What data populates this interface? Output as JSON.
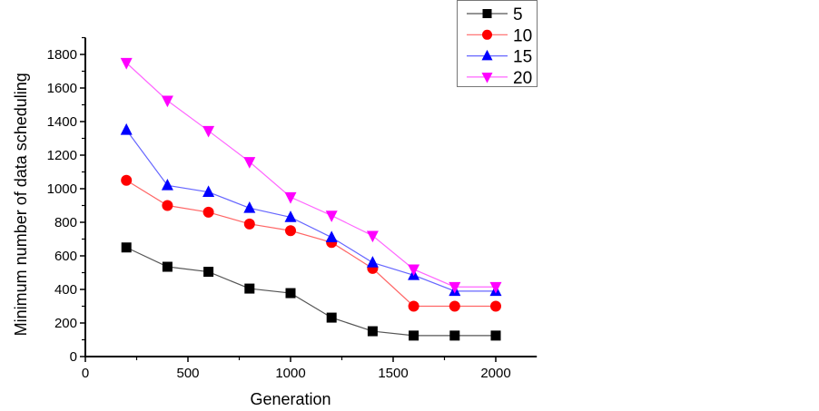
{
  "chart_data": {
    "type": "line",
    "title": "",
    "xlabel": "Generation",
    "ylabel": "Minimum number of data scheduling",
    "xlim": [
      0,
      2200
    ],
    "ylim": [
      0,
      1900
    ],
    "x_ticks": [
      0,
      500,
      1000,
      1500,
      2000
    ],
    "x_tick_labels": [
      "0",
      "500",
      "1000",
      "1500",
      "2000"
    ],
    "y_ticks": [
      0,
      200,
      400,
      600,
      800,
      1000,
      1200,
      1400,
      1600,
      1800
    ],
    "y_tick_labels": [
      "0",
      "200",
      "400",
      "600",
      "800",
      "1000",
      "1200",
      "1400",
      "1600",
      "1800"
    ],
    "grid": false,
    "legend_position": "top-right",
    "x": [
      200,
      400,
      600,
      800,
      1000,
      1200,
      1400,
      1600,
      1800,
      2000
    ],
    "series": [
      {
        "name": "5",
        "color": "#000000",
        "line_color": "#555555",
        "marker": "square",
        "values": [
          650,
          535,
          505,
          405,
          378,
          232,
          151,
          125,
          125,
          125
        ]
      },
      {
        "name": "10",
        "color": "#ff0000",
        "line_color": "#ff6666",
        "marker": "circle",
        "values": [
          1050,
          900,
          860,
          790,
          750,
          680,
          525,
          300,
          300,
          300
        ]
      },
      {
        "name": "15",
        "color": "#0000ff",
        "line_color": "#6666ff",
        "marker": "triangle-up",
        "values": [
          1350,
          1020,
          980,
          885,
          830,
          710,
          560,
          485,
          390,
          390
        ]
      },
      {
        "name": "20",
        "color": "#ff00ff",
        "line_color": "#ff66ff",
        "marker": "triangle-down",
        "values": [
          1750,
          1525,
          1345,
          1160,
          950,
          840,
          720,
          520,
          415,
          415
        ]
      }
    ]
  }
}
